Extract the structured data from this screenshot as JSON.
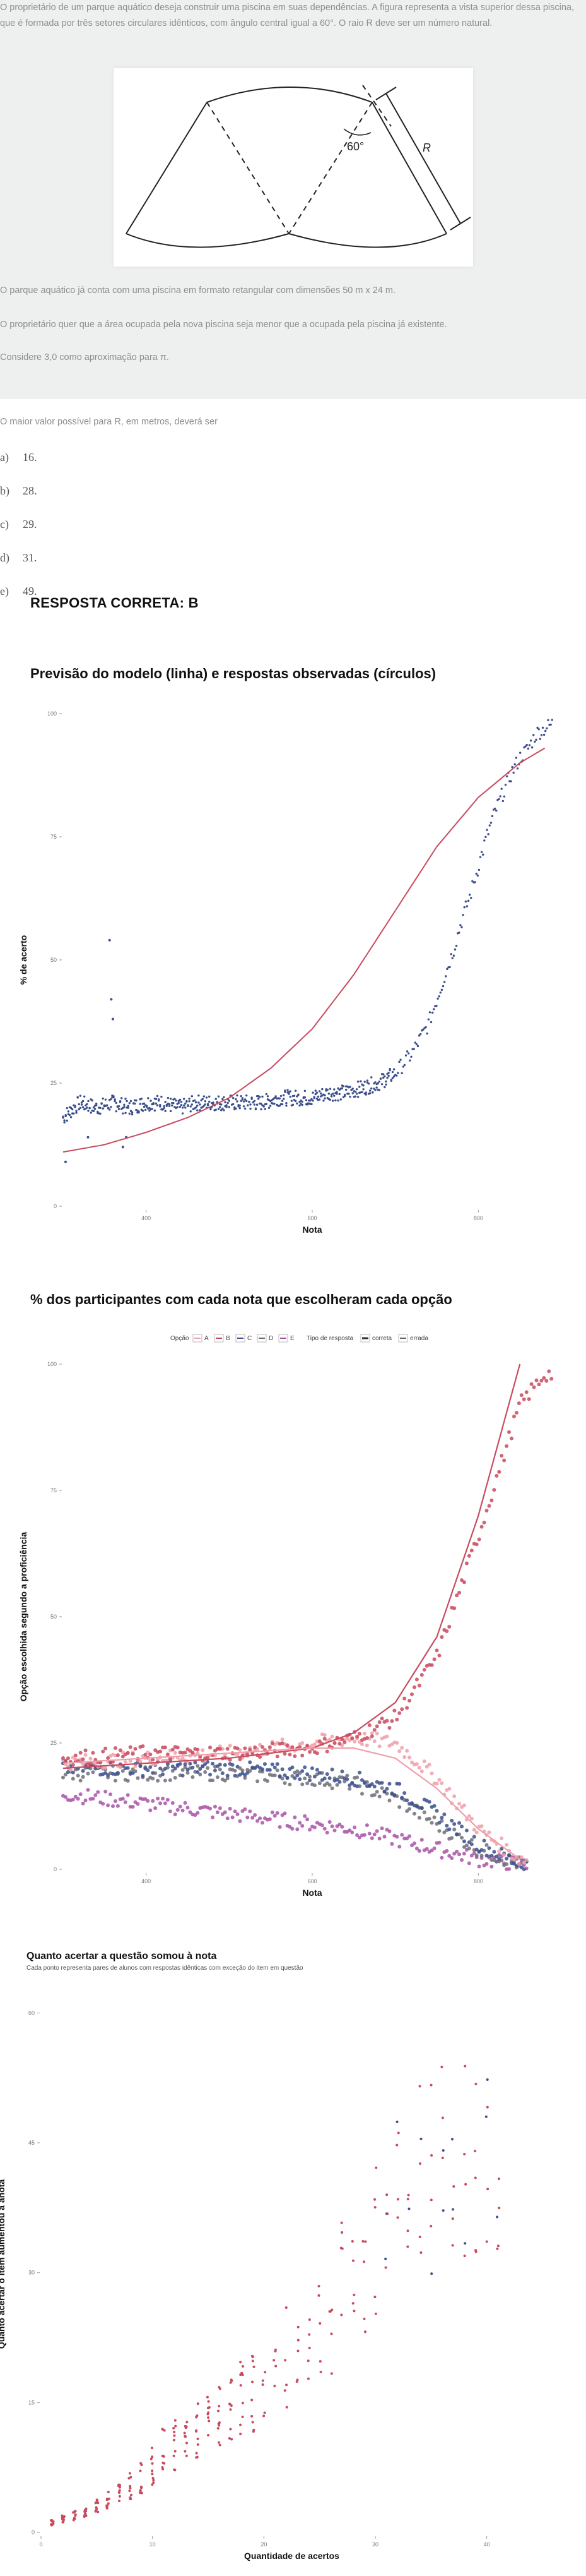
{
  "question": {
    "intro": "O proprietário de um parque aquático deseja construir uma piscina em suas dependências. A figura representa a vista superior dessa piscina, que é formada por três setores circulares idênticos, com ângulo central igual a 60°. O raio R deve ser um número natural.",
    "figure_labels": {
      "angle": "60°",
      "radius": "R"
    },
    "p1": "O parque aquático já conta com uma piscina em formato retangular com dimensões 50 m x 24 m.",
    "p2": "O proprietário quer que a área ocupada pela nova piscina seja menor que a ocupada pela piscina já existente.",
    "p3": "Considere 3,0 como aproximação para π.",
    "prompt": "O maior valor possível para R, em metros, deverá ser",
    "options": [
      {
        "letter": "a)",
        "text": "16."
      },
      {
        "letter": "b)",
        "text": "28."
      },
      {
        "letter": "c)",
        "text": "29."
      },
      {
        "letter": "d)",
        "text": "31."
      },
      {
        "letter": "e)",
        "text": "49."
      }
    ],
    "answer": "RESPOSTA CORRETA: B"
  },
  "colors": {
    "model_line": "#c94a5e",
    "observed": "#3b4f8c",
    "opt_A": "#f0a0aa",
    "opt_B": "#c94a5e",
    "opt_C": "#3b4f8c",
    "opt_D": "#6e6e78",
    "opt_E": "#a855a8",
    "scatter3": "#c94a5e",
    "scatter3_alt": "#3b4f8c"
  },
  "chart_data": [
    {
      "type": "scatter",
      "title": "Previsão do modelo (linha) e respostas observadas (círculos)",
      "xlabel": "Nota",
      "ylabel": "% de acerto",
      "xlim": [
        300,
        900
      ],
      "ylim": [
        0,
        100
      ],
      "xticks": [
        400,
        600,
        800
      ],
      "xtick_labels": [
        "400",
        "600",
        "800"
      ],
      "yticks": [
        0,
        25,
        50,
        75,
        100
      ],
      "grid": false,
      "series": [
        {
          "kind": "line",
          "x": [
            300,
            350,
            400,
            450,
            500,
            550,
            600,
            650,
            700,
            750,
            800,
            850,
            880
          ],
          "y": [
            11,
            12.5,
            15,
            18,
            22,
            28,
            36,
            47,
            60,
            73,
            83,
            90,
            93
          ]
        },
        {
          "kind": "points",
          "x": [
            300,
            320,
            340,
            360,
            380,
            400,
            420,
            440,
            460,
            480,
            500,
            520,
            540,
            560,
            580,
            600,
            620,
            640,
            660,
            680,
            700,
            720,
            740,
            750,
            760,
            770,
            780,
            790,
            800,
            810,
            820,
            830,
            840,
            850,
            860,
            870,
            880,
            890
          ],
          "y": [
            18,
            21,
            20,
            21,
            20,
            21,
            21,
            20,
            21,
            21,
            21,
            21,
            21,
            22,
            22,
            22,
            23,
            23,
            24,
            25,
            27,
            31,
            37,
            42,
            47,
            52,
            58,
            63,
            69,
            75,
            80,
            84,
            88,
            91,
            93,
            96,
            97,
            98
          ]
        },
        {
          "kind": "outliers",
          "x": [
            303,
            330,
            356,
            358,
            360,
            372,
            376
          ],
          "y": [
            9,
            14,
            54,
            42,
            38,
            12,
            14
          ]
        }
      ]
    },
    {
      "type": "scatter",
      "title": "% dos participantes com cada nota que escolheram cada opção",
      "xlabel": "Nota",
      "ylabel": "Opção escolhida segundo a proficiência",
      "legend": {
        "option_label": "Opção",
        "options": [
          "A",
          "B",
          "C",
          "D",
          "E"
        ],
        "type_label": "Tipo de resposta",
        "types": [
          "correta",
          "errada"
        ],
        "position": "top"
      },
      "xlim": [
        300,
        900
      ],
      "ylim": [
        0,
        100
      ],
      "xticks": [
        400,
        600,
        800
      ],
      "xtick_labels": [
        "400",
        "600",
        "800"
      ],
      "yticks": [
        0,
        25,
        50,
        75,
        100
      ],
      "series": [
        {
          "name": "A",
          "x": [
            300,
            400,
            500,
            600,
            650,
            700,
            750,
            800,
            850
          ],
          "y": [
            21,
            22,
            23,
            25,
            26,
            25,
            18,
            8,
            2
          ]
        },
        {
          "name": "B",
          "x": [
            300,
            400,
            500,
            600,
            650,
            700,
            750,
            800,
            850,
            880
          ],
          "y": [
            22,
            23,
            23,
            24,
            26,
            30,
            42,
            66,
            92,
            98
          ]
        },
        {
          "name": "C",
          "x": [
            300,
            400,
            500,
            600,
            650,
            700,
            750,
            800,
            850
          ],
          "y": [
            20,
            20,
            20,
            19,
            18,
            16,
            11,
            5,
            1
          ]
        },
        {
          "name": "D",
          "x": [
            300,
            400,
            500,
            600,
            650,
            700,
            750,
            800,
            850
          ],
          "y": [
            19,
            19,
            19,
            18,
            17,
            14,
            9,
            4,
            1
          ]
        },
        {
          "name": "E",
          "x": [
            300,
            400,
            500,
            600,
            650,
            700,
            750,
            800,
            850
          ],
          "y": [
            15,
            13,
            11,
            9,
            8,
            6,
            4,
            2,
            1
          ]
        },
        {
          "name": "model_B",
          "x": [
            300,
            400,
            500,
            600,
            650,
            700,
            750,
            800,
            850
          ],
          "y": [
            20,
            21,
            22,
            24,
            27,
            33,
            46,
            70,
            100
          ]
        },
        {
          "name": "model_A",
          "x": [
            300,
            400,
            500,
            600,
            650,
            700,
            750,
            800,
            850
          ],
          "y": [
            21,
            22,
            23,
            24,
            24,
            22,
            16,
            8,
            2
          ]
        }
      ]
    },
    {
      "type": "scatter",
      "title": "Quanto acertar a questão somou à nota",
      "subtitle": "Cada ponto representa pares de alunos com respostas idênticas com exceção do item em questão",
      "xlabel": "Quantidade de acertos",
      "ylabel": "Quanto acertar o item aumentou a anota",
      "xlim": [
        0,
        45
      ],
      "ylim": [
        0,
        62
      ],
      "xticks": [
        0,
        10,
        20,
        30,
        40
      ],
      "xtick_labels": [
        "0",
        "10",
        "20",
        "30",
        "40"
      ],
      "yticks": [
        0,
        15,
        30,
        45,
        60
      ],
      "points_x": [
        1,
        2,
        3,
        4,
        5,
        6,
        7,
        8,
        9,
        10,
        11,
        12,
        13,
        14,
        15,
        16,
        17,
        18,
        19,
        20,
        21,
        22,
        23,
        24,
        25,
        26,
        27,
        28,
        29,
        30,
        31,
        32,
        33,
        34,
        35,
        36,
        37,
        38,
        39,
        40,
        41
      ],
      "points_y_max": [
        1.5,
        2,
        2.5,
        3,
        4,
        5,
        6,
        7,
        8,
        10,
        12,
        13,
        14,
        15,
        16,
        17,
        19,
        20,
        21,
        22,
        24,
        26,
        27,
        29,
        31,
        33,
        36,
        38,
        40,
        43,
        45,
        48,
        50,
        52,
        53,
        55,
        56,
        55,
        54,
        53,
        52
      ]
    }
  ]
}
